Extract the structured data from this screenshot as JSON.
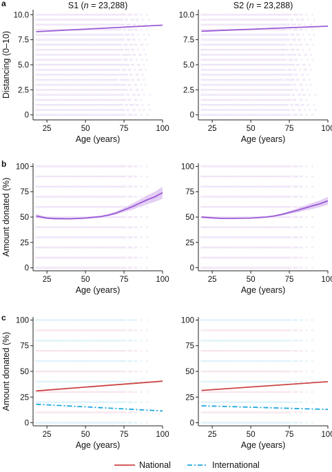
{
  "legend": {
    "entries": [
      {
        "label": "National",
        "color": "#cc4444",
        "dash": "solid"
      },
      {
        "label": "International",
        "color": "#1aa7e0",
        "dash": "dashdot"
      }
    ]
  },
  "chart_data": [
    {
      "id": "a-s1",
      "panel_letter": "a",
      "type": "scatter",
      "title_prefix": "S1 (",
      "title_italic": "n",
      "title_suffix": " = 23,288)",
      "xlabel": "Age (years)",
      "ylabel": "Distancing (0–10)",
      "xlim": [
        16,
        100
      ],
      "ylim": [
        -0.5,
        10.5
      ],
      "xticks": [
        25,
        50,
        75,
        100
      ],
      "yticks": [
        0,
        2.5,
        5.0,
        7.5,
        10.0
      ],
      "ytick_labels": [
        "0",
        "2.5",
        "5.0",
        "7.5",
        "10.0"
      ],
      "points_x_range": [
        18,
        92
      ],
      "points_y_step": 0.5,
      "points_color": "#c9a3e6",
      "series": [
        {
          "name": "",
          "color": "#9b59d6",
          "x": [
            18,
            100
          ],
          "y": [
            8.3,
            8.95
          ],
          "band": null
        }
      ]
    },
    {
      "id": "a-s2",
      "panel_letter": "",
      "type": "scatter",
      "title_prefix": "S2 (",
      "title_italic": "n",
      "title_suffix": " = 23,288)",
      "xlabel": "Age (years)",
      "ylabel": "",
      "xlim": [
        16,
        100
      ],
      "ylim": [
        -0.5,
        10.5
      ],
      "xticks": [
        25,
        50,
        75,
        100
      ],
      "yticks": [
        0,
        2.5,
        5.0,
        7.5,
        10.0
      ],
      "ytick_labels": [
        "0",
        "2.5",
        "5.0",
        "7.5",
        "10.0"
      ],
      "points_x_range": [
        18,
        92
      ],
      "points_y_step": 0.5,
      "points_color": "#c9a3e6",
      "series": [
        {
          "name": "",
          "color": "#9b59d6",
          "x": [
            18,
            100
          ],
          "y": [
            8.35,
            8.85
          ],
          "band": null
        }
      ]
    },
    {
      "id": "b-s1",
      "panel_letter": "b",
      "type": "scatter",
      "title_prefix": "",
      "title_italic": "",
      "title_suffix": "",
      "xlabel": "Age (years)",
      "ylabel": "Amount donated (%)",
      "xlim": [
        16,
        100
      ],
      "ylim": [
        -3,
        103
      ],
      "xticks": [
        25,
        50,
        75,
        100
      ],
      "yticks": [
        0,
        25,
        50,
        75,
        100
      ],
      "ytick_labels": [
        "0",
        "25",
        "50",
        "75",
        "100"
      ],
      "points_x_range": [
        18,
        92
      ],
      "points_y_step": 10,
      "points_color": "#c9a3e6",
      "series": [
        {
          "name": "",
          "color": "#9b59d6",
          "x": [
            18,
            25,
            30,
            40,
            50,
            60,
            65,
            70,
            75,
            80,
            85,
            90,
            95,
            100
          ],
          "y": [
            51,
            49,
            48.5,
            48.3,
            49,
            50.5,
            52,
            54,
            57,
            60,
            63.5,
            67,
            70,
            74
          ],
          "band": {
            "lower": [
              49,
              48,
              47.5,
              47.5,
              48.2,
              49.7,
              51,
              52.5,
              55,
              57,
              60,
              62.5,
              65,
              68
            ],
            "upper": [
              53,
              50,
              49.5,
              49.1,
              49.8,
              51.3,
              53,
              55.5,
              59,
              63,
              67,
              71.5,
              75,
              80
            ],
            "color": "#d9bff0"
          }
        }
      ]
    },
    {
      "id": "b-s2",
      "panel_letter": "",
      "type": "scatter",
      "title_prefix": "",
      "title_italic": "",
      "title_suffix": "",
      "xlabel": "Age (years)",
      "ylabel": "",
      "xlim": [
        16,
        100
      ],
      "ylim": [
        -3,
        103
      ],
      "xticks": [
        25,
        50,
        75,
        100
      ],
      "yticks": [
        0,
        25,
        50,
        75,
        100
      ],
      "ytick_labels": [
        "0",
        "25",
        "50",
        "75",
        "100"
      ],
      "points_x_range": [
        18,
        92
      ],
      "points_y_step": 10,
      "points_color": "#c9a3e6",
      "series": [
        {
          "name": "",
          "color": "#9b59d6",
          "x": [
            18,
            25,
            30,
            40,
            50,
            60,
            65,
            70,
            75,
            80,
            85,
            90,
            95,
            100
          ],
          "y": [
            50,
            49.2,
            48.8,
            48.7,
            49,
            50,
            51,
            52.5,
            54.5,
            56.5,
            58.8,
            61,
            63.2,
            66
          ],
          "band": {
            "lower": [
              48.8,
              48.4,
              48.1,
              48.1,
              48.4,
              49.3,
              50.2,
              51.4,
              53,
              54.5,
              56.3,
              58,
              59.8,
              62
            ],
            "upper": [
              51.2,
              50,
              49.5,
              49.3,
              49.6,
              50.7,
              51.8,
              53.6,
              56,
              58.5,
              61.3,
              64,
              66.6,
              70
            ],
            "color": "#d9bff0"
          }
        }
      ]
    },
    {
      "id": "c-s1",
      "panel_letter": "c",
      "type": "scatter",
      "title_prefix": "",
      "title_italic": "",
      "title_suffix": "",
      "xlabel": "Age (years)",
      "ylabel": "Amount donated (%)",
      "xlim": [
        16,
        100
      ],
      "ylim": [
        -3,
        103
      ],
      "xticks": [
        25,
        50,
        75,
        100
      ],
      "yticks": [
        0,
        25,
        50,
        75,
        100
      ],
      "ytick_labels": [
        "0",
        "25",
        "50",
        "75",
        "100"
      ],
      "points_x_range": [
        18,
        92
      ],
      "points_y_step": 10,
      "points_color": "#e6a9bf",
      "points_alt_color": "#8fd3ef",
      "series": [
        {
          "name": "National",
          "color": "#cc4444",
          "dash": "solid",
          "x": [
            18,
            100
          ],
          "y": [
            31,
            40.5
          ],
          "band": null
        },
        {
          "name": "International",
          "color": "#1aa7e0",
          "dash": "dashdot",
          "x": [
            18,
            100
          ],
          "y": [
            18,
            11.5
          ],
          "band": null
        }
      ]
    },
    {
      "id": "c-s2",
      "panel_letter": "",
      "type": "scatter",
      "title_prefix": "",
      "title_italic": "",
      "title_suffix": "",
      "xlabel": "Age (years)",
      "ylabel": "",
      "xlim": [
        16,
        100
      ],
      "ylim": [
        -3,
        103
      ],
      "xticks": [
        25,
        50,
        75,
        100
      ],
      "yticks": [
        0,
        25,
        50,
        75,
        100
      ],
      "ytick_labels": [
        "0",
        "25",
        "50",
        "75",
        "100"
      ],
      "points_x_range": [
        18,
        92
      ],
      "points_y_step": 10,
      "points_color": "#e6a9bf",
      "points_alt_color": "#8fd3ef",
      "series": [
        {
          "name": "National",
          "color": "#cc4444",
          "dash": "solid",
          "x": [
            18,
            100
          ],
          "y": [
            31.5,
            40
          ],
          "band": null
        },
        {
          "name": "International",
          "color": "#1aa7e0",
          "dash": "dashdot",
          "x": [
            18,
            100
          ],
          "y": [
            16.5,
            13
          ],
          "band": null
        }
      ]
    }
  ]
}
